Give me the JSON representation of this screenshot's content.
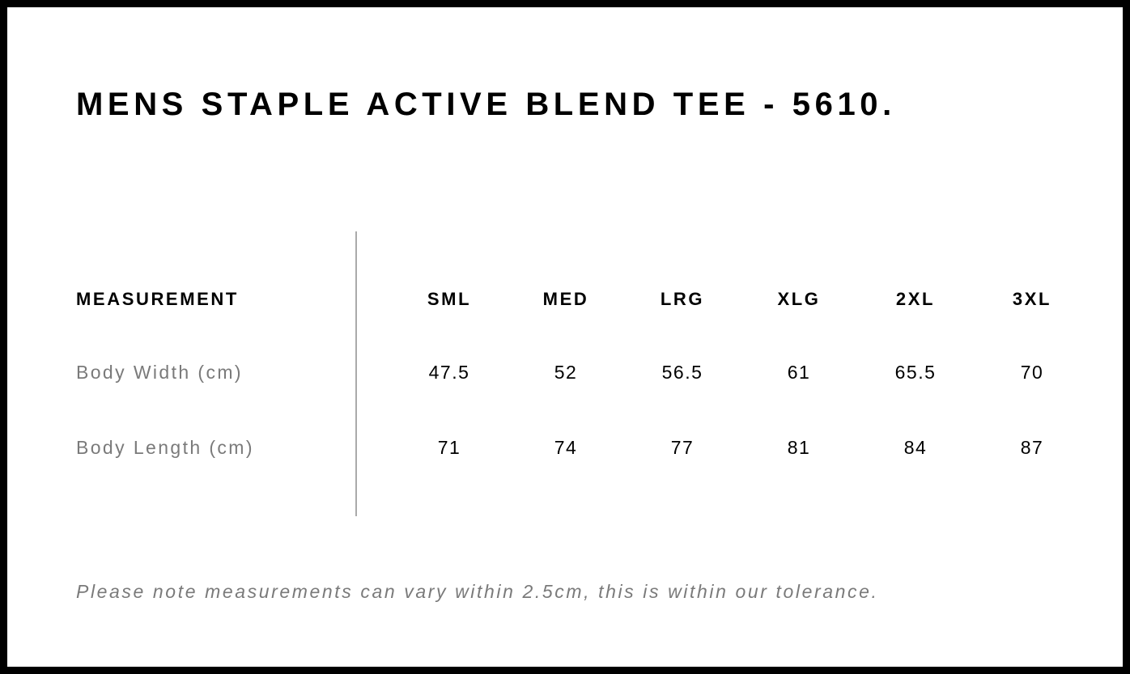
{
  "title": "MENS STAPLE ACTIVE BLEND TEE - 5610.",
  "table": {
    "header": "MEASUREMENT",
    "sizes": [
      "SML",
      "MED",
      "LRG",
      "XLG",
      "2XL",
      "3XL"
    ],
    "rows": [
      {
        "label": "Body Width (cm)",
        "values": [
          "47.5",
          "52",
          "56.5",
          "61",
          "65.5",
          "70"
        ]
      },
      {
        "label": "Body Length (cm)",
        "values": [
          "71",
          "74",
          "77",
          "81",
          "84",
          "87"
        ]
      }
    ]
  },
  "note": "Please note measurements can vary within 2.5cm, this is within our tolerance."
}
